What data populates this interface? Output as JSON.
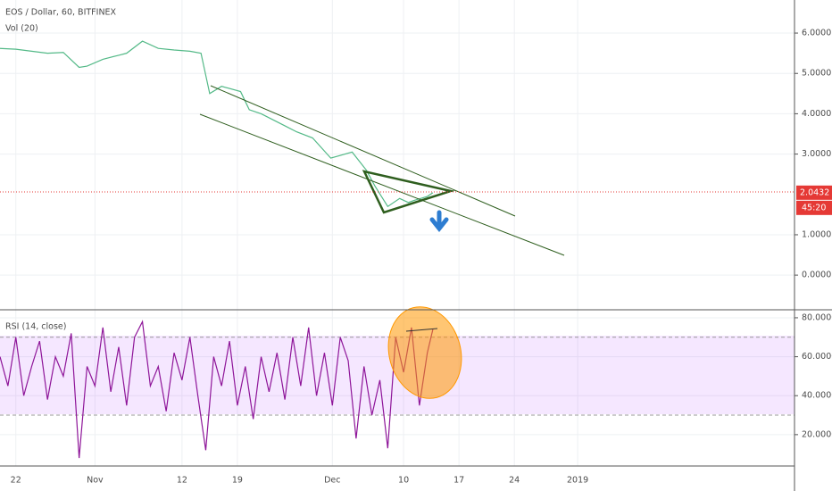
{
  "chart_data": [
    {
      "type": "line",
      "title": "EOS / Dollar, 60, BITFINEX",
      "subtitle": "Vol (20)",
      "x": [
        -2,
        0,
        2,
        4,
        6,
        8,
        9,
        11,
        13,
        14,
        16,
        18,
        20,
        22,
        23.4,
        24.5,
        26,
        28.4,
        29.5,
        31,
        34,
        35.5,
        37.5,
        39.8,
        42.5,
        44.3,
        45.4,
        47,
        48.5,
        49.6,
        50.3,
        52,
        52.7
      ],
      "series": [
        {
          "name": "EOS / Dollar",
          "color": "#53b987",
          "values": [
            5.62,
            5.6,
            5.55,
            5.5,
            5.52,
            5.15,
            5.18,
            5.35,
            5.45,
            5.5,
            5.8,
            5.62,
            5.58,
            5.55,
            5.5,
            4.5,
            4.68,
            4.55,
            4.1,
            4.0,
            3.7,
            3.55,
            3.4,
            2.9,
            3.05,
            2.6,
            2.2,
            1.7,
            1.9,
            1.8,
            1.85,
            1.95,
            2.0432
          ]
        }
      ],
      "xlim": [
        -2,
        98.4
      ],
      "ylim": [
        -0.86,
        6.82
      ],
      "yticks": [
        {
          "value": 0,
          "label": "0.0000"
        },
        {
          "value": 1,
          "label": "1.0000"
        },
        {
          "value": 3,
          "label": "3.0000"
        },
        {
          "value": 4,
          "label": "4.0000"
        },
        {
          "value": 5,
          "label": "5.0000"
        },
        {
          "value": 6,
          "label": "6.0000"
        }
      ],
      "last_price": 2.0432,
      "countdown": "45:20"
    },
    {
      "type": "line",
      "title": "RSI (14, close)",
      "x": [
        -2,
        -1,
        0,
        1,
        2,
        3,
        4,
        5,
        6,
        7,
        8,
        9,
        10,
        11,
        12,
        13,
        14,
        15,
        16,
        17,
        18,
        19,
        20,
        21,
        22,
        23,
        24,
        25,
        26,
        27,
        28,
        29,
        30,
        31,
        32,
        33,
        34,
        35,
        36,
        37,
        38,
        39,
        40,
        41,
        42,
        43,
        44,
        45,
        46,
        47,
        48,
        49,
        50,
        51,
        52,
        52.7
      ],
      "series": [
        {
          "name": "RSI",
          "color": "#8e1599",
          "values": [
            60,
            45,
            70,
            40,
            55,
            68,
            38,
            60,
            50,
            72,
            8,
            55,
            45,
            75,
            42,
            65,
            35,
            70,
            78,
            45,
            55,
            32,
            62,
            48,
            70,
            40,
            12,
            60,
            45,
            68,
            35,
            55,
            28,
            60,
            42,
            62,
            38,
            70,
            45,
            75,
            40,
            62,
            35,
            70,
            58,
            18,
            55,
            30,
            48,
            13,
            70,
            52,
            75,
            35,
            62,
            74
          ]
        }
      ],
      "xlim": [
        -2,
        98.4
      ],
      "ylim": [
        3.9,
        84.1
      ],
      "yticks": [
        {
          "value": 20,
          "label": "20.0000"
        },
        {
          "value": 40,
          "label": "40.0000"
        },
        {
          "value": 60,
          "label": "60.0000"
        },
        {
          "value": 80,
          "label": "80.0000"
        }
      ],
      "levels": [
        70,
        30
      ],
      "xticks": [
        {
          "value": 0,
          "label": "22"
        },
        {
          "value": 10,
          "label": "Nov"
        },
        {
          "value": 21,
          "label": "12"
        },
        {
          "value": 28,
          "label": "19"
        },
        {
          "value": 40,
          "label": "Dec"
        },
        {
          "value": 49,
          "label": "10"
        },
        {
          "value": 56,
          "label": "17"
        },
        {
          "value": 63,
          "label": "24"
        },
        {
          "value": 71,
          "label": "2019"
        }
      ]
    }
  ]
}
